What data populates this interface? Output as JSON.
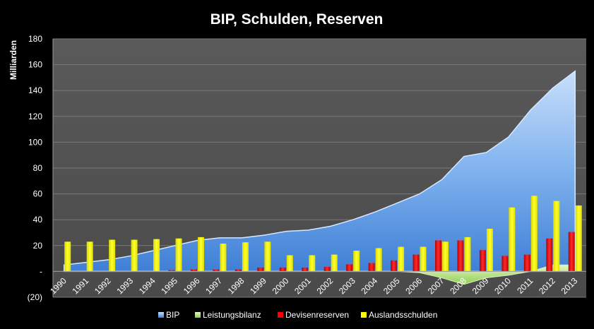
{
  "chart_data": {
    "type": "bar",
    "title": "BIP, Schulden, Reserven",
    "ylabel": "Milliarden",
    "xlabel": "",
    "ylim": [
      -20,
      180
    ],
    "yticks": [
      -20,
      0,
      20,
      40,
      60,
      80,
      100,
      120,
      140,
      160,
      180
    ],
    "ytick_labels": [
      "(20)",
      "-",
      "20",
      "40",
      "60",
      "80",
      "100",
      "120",
      "140",
      "160",
      "180"
    ],
    "grid": true,
    "legend_position": "bottom",
    "categories": [
      "1990",
      "1991",
      "1992",
      "1993",
      "1994",
      "1995",
      "1996",
      "1997",
      "1998",
      "1999",
      "2000",
      "2001",
      "2002",
      "2003",
      "2004",
      "2005",
      "2006",
      "2007",
      "2008",
      "2009",
      "2010",
      "2011",
      "2012",
      "2013"
    ],
    "series": [
      {
        "name": "BIP",
        "kind": "area",
        "color": "#5b9bd5",
        "values": [
          5,
          7,
          9,
          12,
          16,
          20,
          24,
          26,
          26,
          28,
          31,
          32,
          35,
          40,
          46,
          53,
          60,
          71,
          89,
          92,
          104,
          125,
          142,
          155
        ]
      },
      {
        "name": "Leistungsbilanz",
        "kind": "area",
        "color": "#b5e08a",
        "values": [
          0,
          0,
          0,
          0,
          0,
          0,
          0,
          0,
          0,
          0,
          0,
          0,
          0,
          0,
          0,
          0,
          -1,
          -5,
          -10,
          -5,
          -3,
          0,
          5,
          5
        ]
      },
      {
        "name": "Devisenreserven",
        "kind": "bar",
        "color": "#ff0000",
        "values": [
          0,
          0,
          0,
          0,
          0,
          1,
          1.5,
          1.5,
          1.5,
          3,
          3,
          3,
          3.5,
          5.5,
          6.5,
          8.5,
          13,
          24,
          24,
          16.5,
          12,
          13,
          25.5,
          30.5
        ]
      },
      {
        "name": "Auslandsschulden",
        "kind": "bar",
        "color": "#ffff00",
        "values": [
          23,
          23,
          24.5,
          24.5,
          25,
          25.5,
          26.5,
          21.5,
          22.5,
          23,
          12.5,
          12.5,
          13,
          16,
          18,
          19,
          19,
          23,
          26.5,
          33,
          49.5,
          58.5,
          54.5,
          51
        ]
      }
    ]
  }
}
